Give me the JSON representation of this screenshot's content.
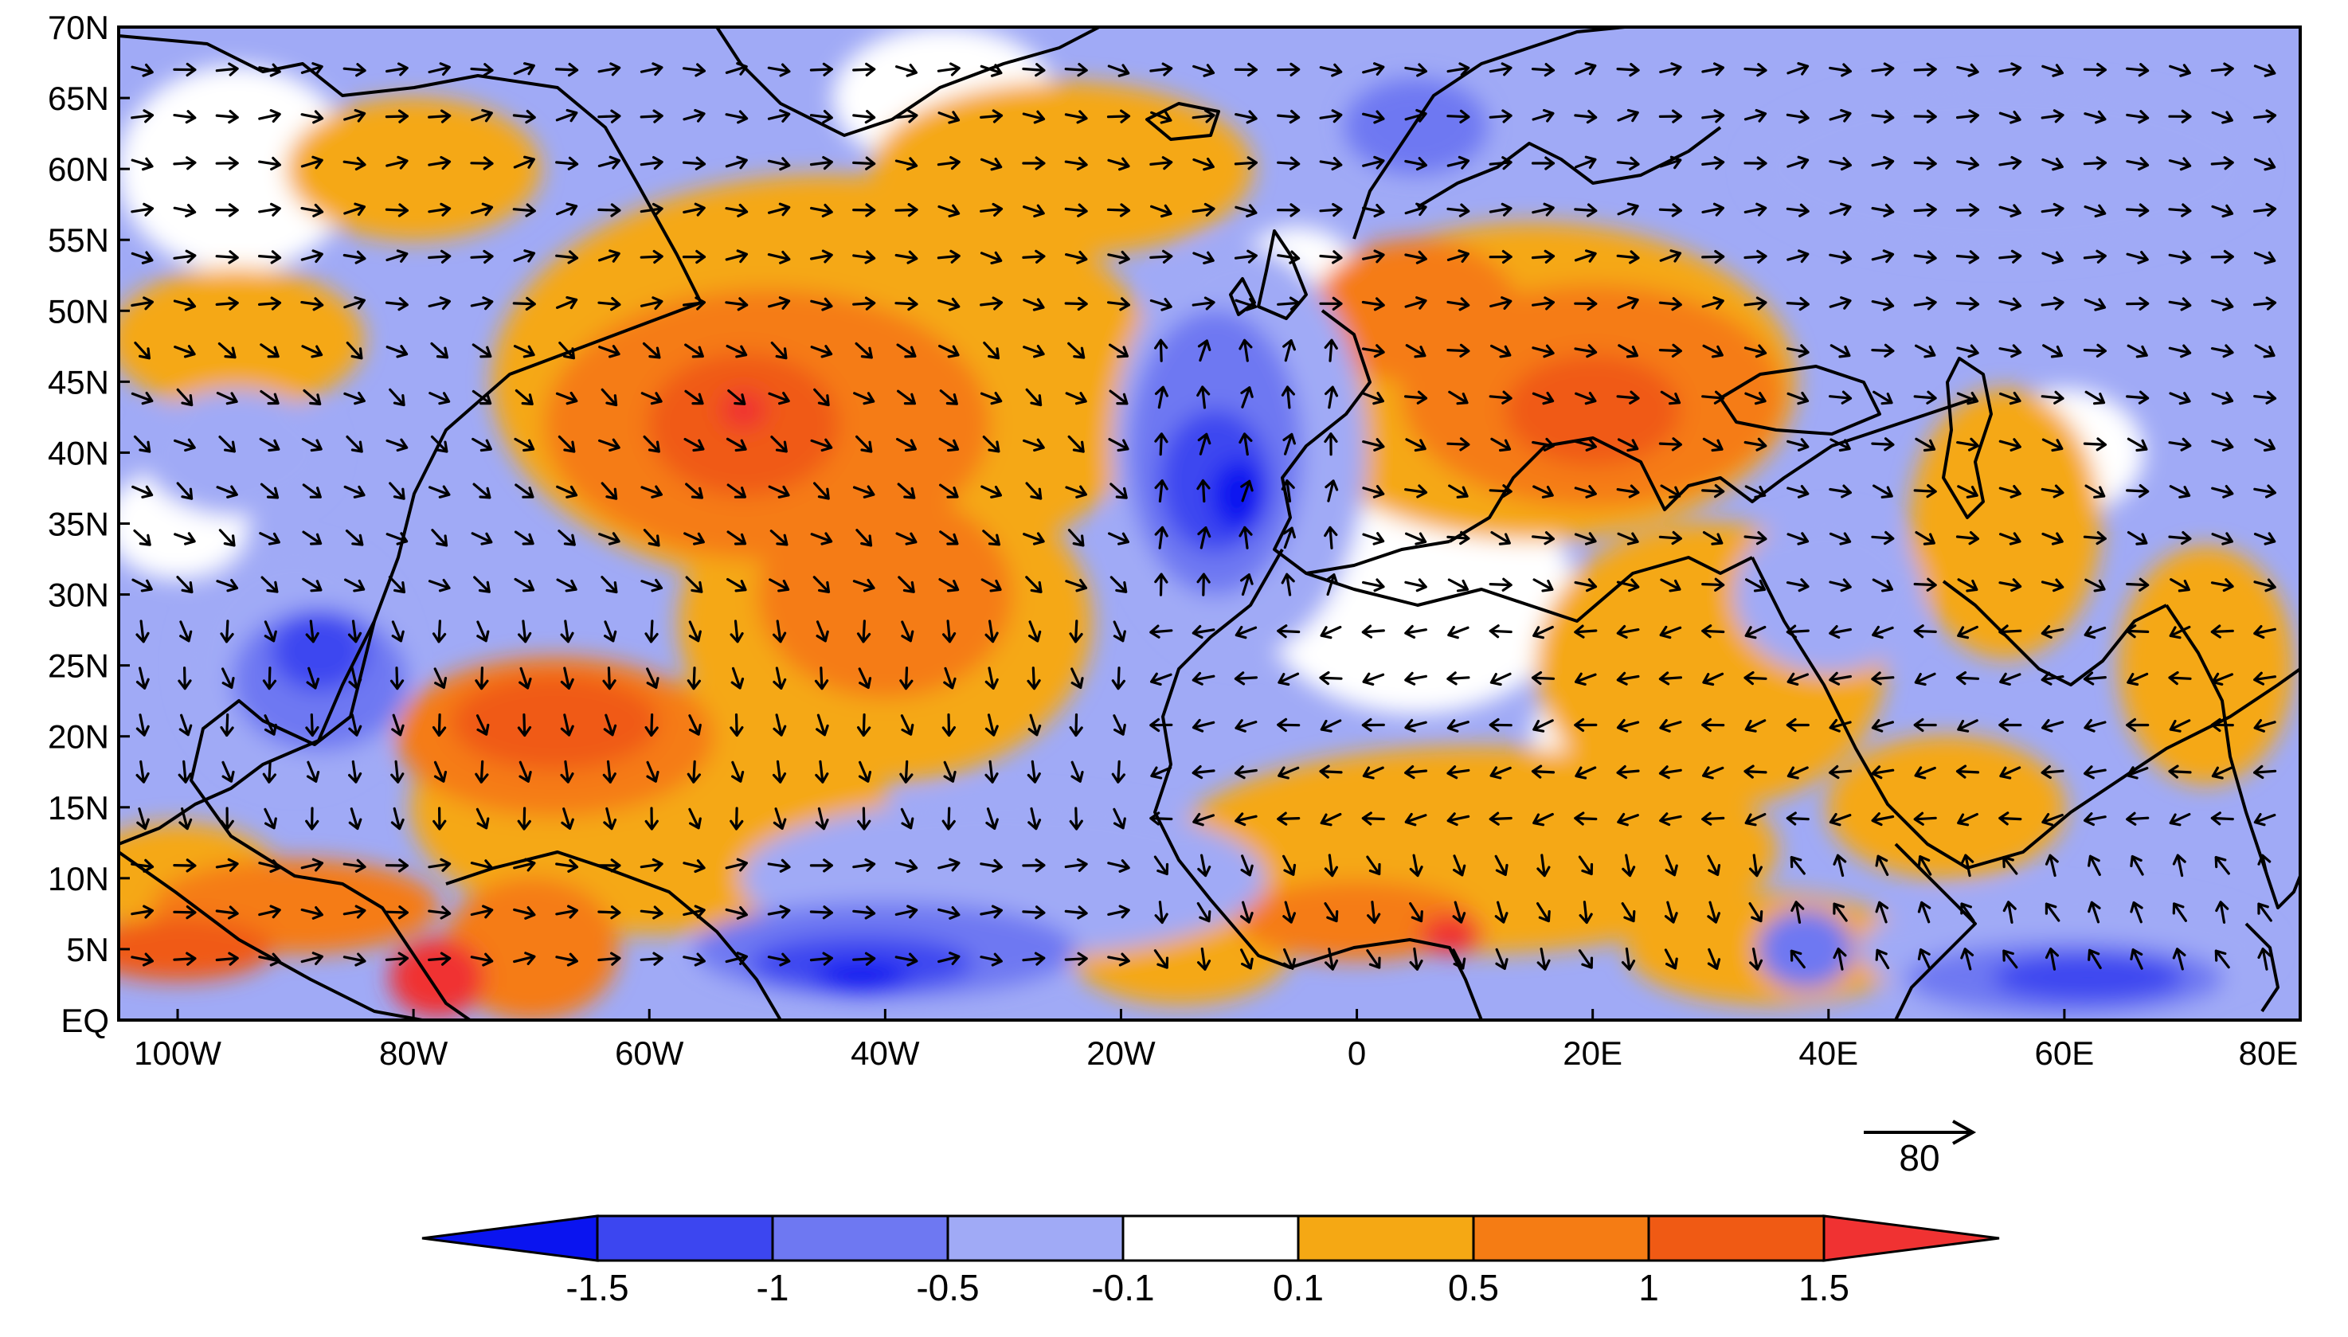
{
  "map": {
    "type": "shaded-anomaly-map-with-wind-vectors",
    "extent": {
      "lon": [
        -105,
        80
      ],
      "lat": [
        0,
        70
      ]
    },
    "lat_ticks": [
      {
        "lat": 70,
        "label": "70N"
      },
      {
        "lat": 65,
        "label": "65N"
      },
      {
        "lat": 60,
        "label": "60N"
      },
      {
        "lat": 55,
        "label": "55N"
      },
      {
        "lat": 50,
        "label": "50N"
      },
      {
        "lat": 45,
        "label": "45N"
      },
      {
        "lat": 40,
        "label": "40N"
      },
      {
        "lat": 35,
        "label": "35N"
      },
      {
        "lat": 30,
        "label": "30N"
      },
      {
        "lat": 25,
        "label": "25N"
      },
      {
        "lat": 20,
        "label": "20N"
      },
      {
        "lat": 15,
        "label": "15N"
      },
      {
        "lat": 10,
        "label": "10N"
      },
      {
        "lat": 5,
        "label": "5N"
      },
      {
        "lat": 0,
        "label": "EQ"
      }
    ],
    "lon_ticks": [
      {
        "lon": -100,
        "label": "100W"
      },
      {
        "lon": -80,
        "label": "80W"
      },
      {
        "lon": -60,
        "label": "60W"
      },
      {
        "lon": -40,
        "label": "40W"
      },
      {
        "lon": -20,
        "label": "20W"
      },
      {
        "lon": 0,
        "label": "0"
      },
      {
        "lon": 20,
        "label": "20E"
      },
      {
        "lon": 40,
        "label": "40E"
      },
      {
        "lon": 60,
        "label": "60E"
      },
      {
        "lon": 80,
        "label": "80E"
      }
    ],
    "reference_vector": {
      "label": "80",
      "magnitude": 80
    }
  },
  "colorbar": {
    "levels": [
      -1.5,
      -1,
      -0.5,
      -0.1,
      0.1,
      0.5,
      1,
      1.5
    ],
    "labels": [
      "-1.5",
      "-1",
      "-0.5",
      "-0.1",
      "0.1",
      "0.5",
      "1",
      "1.5"
    ],
    "colors": [
      "#0a14f0",
      "#3c46f0",
      "#6e78f2",
      "#a0aaf6",
      "#ffffff",
      "#f5a814",
      "#f57c14",
      "#f05a14",
      "#f03232"
    ]
  },
  "regions": [
    {
      "name": "blue-anomaly-east-atlantic",
      "value": -1.5,
      "lon": -12,
      "lat": 40
    },
    {
      "name": "blue-anomaly-gulf-of-mexico",
      "value": -1.2,
      "lon": -90,
      "lat": 25
    },
    {
      "name": "blue-anomaly-tropical-atlantic",
      "value": -1.3,
      "lon": -40,
      "lat": 4
    },
    {
      "name": "blue-anomaly-indian-ocean",
      "value": -1.4,
      "lon": 62,
      "lat": 3
    },
    {
      "name": "orange-anomaly-north-atlantic",
      "value": 1.1,
      "lon": -50,
      "lat": 40
    },
    {
      "name": "orange-anomaly-caribbean",
      "value": 1.1,
      "lon": -70,
      "lat": 20
    },
    {
      "name": "red-anomaly-northern-south-america",
      "value": 1.6,
      "lon": -78,
      "lat": 3
    },
    {
      "name": "red-anomaly-gulf-of-guinea",
      "value": 1.6,
      "lon": 8,
      "lat": 6
    },
    {
      "name": "orange-anomaly-europe",
      "value": 1.1,
      "lon": 22,
      "lat": 42
    }
  ]
}
